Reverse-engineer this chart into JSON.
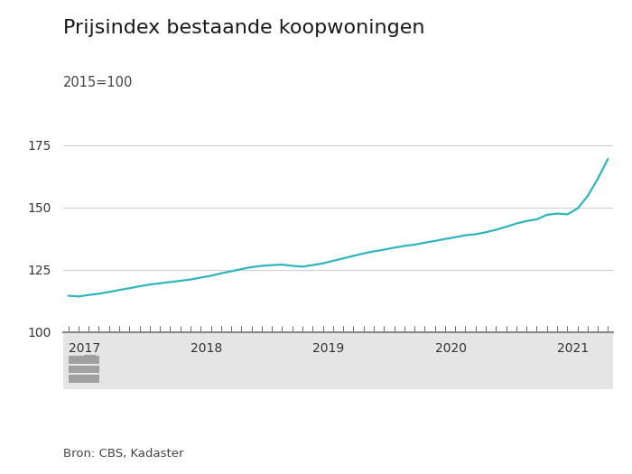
{
  "title": "Prijsindex bestaande koopwoningen",
  "subtitle": "2015=100",
  "source": "Bron: CBS, Kadaster",
  "line_color": "#2eb5bd",
  "line_width": 1.6,
  "background_color": "#ffffff",
  "plot_bg_color": "#ffffff",
  "bottom_panel_bg": "#e5e5e5",
  "grid_color": "#d0d0d0",
  "ylim": [
    100,
    180
  ],
  "yticks": [
    100,
    125,
    150,
    175
  ],
  "title_fontsize": 16,
  "subtitle_fontsize": 10.5,
  "tick_fontsize": 10,
  "source_fontsize": 9.5,
  "values": [
    114.5,
    114.2,
    114.8,
    115.3,
    116.0,
    116.8,
    117.5,
    118.3,
    119.0,
    119.5,
    120.0,
    120.5,
    121.0,
    121.8,
    122.5,
    123.5,
    124.3,
    125.2,
    126.0,
    126.5,
    126.8,
    127.0,
    126.5,
    126.2,
    126.8,
    127.5,
    128.5,
    129.5,
    130.5,
    131.5,
    132.3,
    133.0,
    133.8,
    134.5,
    135.0,
    135.8,
    136.5,
    137.3,
    138.0,
    138.8,
    139.2,
    140.0,
    141.0,
    142.2,
    143.5,
    144.5,
    145.2,
    147.0,
    147.5,
    147.2,
    149.5,
    154.5,
    161.5,
    169.5
  ],
  "year_ticks": [
    2017,
    2018,
    2019,
    2020,
    2021
  ],
  "year_tick_positions": [
    0,
    12,
    24,
    36,
    48
  ],
  "n_months": 54
}
